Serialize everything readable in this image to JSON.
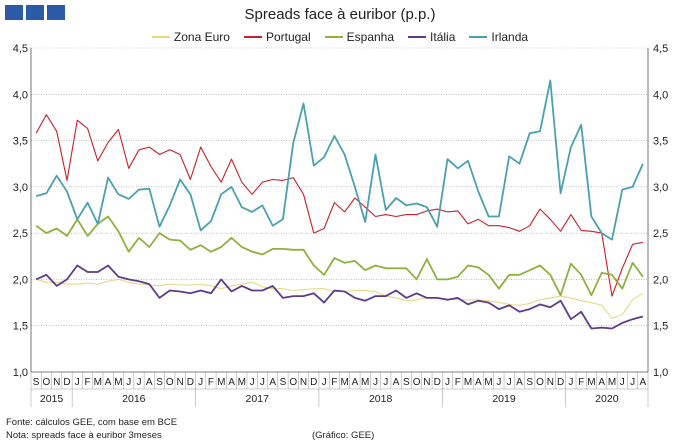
{
  "chart_data": {
    "type": "line",
    "title": "Spreads face à euribor (p.p.)",
    "y_ticks": [
      "1,0",
      "1,5",
      "2,0",
      "2,5",
      "3,0",
      "3,5",
      "4,0",
      "4,5"
    ],
    "ylim": [
      1.0,
      4.5
    ],
    "month_labels": [
      "S",
      "O",
      "N",
      "D",
      "J",
      "F",
      "M",
      "A",
      "M",
      "J",
      "J",
      "A",
      "S",
      "O",
      "N",
      "D",
      "J",
      "F",
      "M",
      "A",
      "M",
      "J",
      "J",
      "A",
      "S",
      "O",
      "N",
      "D",
      "J",
      "F",
      "M",
      "A",
      "M",
      "J",
      "J",
      "A",
      "S",
      "O",
      "N",
      "D",
      "J",
      "F",
      "M",
      "A",
      "M",
      "J",
      "J",
      "A",
      "S",
      "O",
      "N",
      "D",
      "J",
      "F",
      "M",
      "A",
      "M",
      "J",
      "J",
      "A"
    ],
    "year_labels": [
      {
        "label": "2015",
        "start": 0,
        "span": 4
      },
      {
        "label": "2016",
        "start": 4,
        "span": 12
      },
      {
        "label": "2017",
        "start": 16,
        "span": 12
      },
      {
        "label": "2018",
        "start": 28,
        "span": 12
      },
      {
        "label": "2019",
        "start": 40,
        "span": 12
      },
      {
        "label": "2020",
        "start": 52,
        "span": 8
      }
    ],
    "grid": true,
    "legend_position": "top",
    "series": [
      {
        "name": "Zona Euro",
        "color": "#e8d888",
        "values": [
          2.0,
          1.97,
          1.97,
          1.95,
          1.95,
          1.96,
          1.95,
          1.98,
          2.0,
          1.97,
          1.95,
          1.94,
          1.93,
          1.95,
          1.94,
          1.94,
          1.95,
          1.93,
          1.9,
          1.93,
          1.95,
          1.97,
          1.92,
          1.9,
          1.9,
          1.88,
          1.89,
          1.9,
          1.9,
          1.87,
          1.87,
          1.88,
          1.88,
          1.87,
          1.82,
          1.8,
          1.77,
          1.78,
          1.8,
          1.8,
          1.79,
          1.78,
          1.78,
          1.78,
          1.77,
          1.75,
          1.73,
          1.72,
          1.74,
          1.78,
          1.8,
          1.82,
          1.8,
          1.77,
          1.75,
          1.72,
          1.58,
          1.62,
          1.78,
          1.85
        ]
      },
      {
        "name": "Portugal",
        "color": "#c8202a",
        "values": [
          3.58,
          3.78,
          3.6,
          3.07,
          3.72,
          3.63,
          3.28,
          3.48,
          3.62,
          3.2,
          3.4,
          3.43,
          3.35,
          3.4,
          3.35,
          3.08,
          3.43,
          3.22,
          3.05,
          3.3,
          3.05,
          2.92,
          3.05,
          3.08,
          3.07,
          3.1,
          2.92,
          2.5,
          2.55,
          2.83,
          2.73,
          2.88,
          2.78,
          2.68,
          2.7,
          2.68,
          2.7,
          2.7,
          2.74,
          2.76,
          2.73,
          2.74,
          2.6,
          2.65,
          2.58,
          2.58,
          2.56,
          2.52,
          2.58,
          2.76,
          2.65,
          2.52,
          2.7,
          2.53,
          2.52,
          2.5,
          1.82,
          2.12,
          2.38,
          2.4
        ]
      },
      {
        "name": "Espanha",
        "color": "#8fb040",
        "values": [
          2.58,
          2.5,
          2.55,
          2.47,
          2.65,
          2.47,
          2.6,
          2.68,
          2.52,
          2.3,
          2.45,
          2.35,
          2.5,
          2.43,
          2.42,
          2.32,
          2.37,
          2.3,
          2.35,
          2.45,
          2.35,
          2.3,
          2.27,
          2.33,
          2.33,
          2.32,
          2.32,
          2.15,
          2.05,
          2.23,
          2.18,
          2.2,
          2.1,
          2.15,
          2.12,
          2.12,
          2.12,
          2.0,
          2.22,
          2.0,
          2.0,
          2.03,
          2.15,
          2.13,
          2.05,
          1.9,
          2.05,
          2.05,
          2.1,
          2.15,
          2.05,
          1.83,
          2.17,
          2.05,
          1.83,
          2.07,
          2.05,
          1.9,
          2.18,
          2.03
        ]
      },
      {
        "name": "Itália",
        "color": "#5e3a8c",
        "values": [
          2.0,
          2.05,
          1.93,
          2.0,
          2.15,
          2.08,
          2.08,
          2.15,
          2.03,
          2.0,
          1.98,
          1.95,
          1.8,
          1.88,
          1.87,
          1.85,
          1.88,
          1.85,
          2.0,
          1.87,
          1.93,
          1.88,
          1.88,
          1.93,
          1.8,
          1.82,
          1.82,
          1.85,
          1.75,
          1.88,
          1.87,
          1.8,
          1.77,
          1.82,
          1.82,
          1.88,
          1.8,
          1.85,
          1.8,
          1.8,
          1.78,
          1.8,
          1.73,
          1.77,
          1.75,
          1.68,
          1.72,
          1.65,
          1.68,
          1.73,
          1.7,
          1.77,
          1.57,
          1.65,
          1.47,
          1.48,
          1.47,
          1.53,
          1.57,
          1.6
        ]
      },
      {
        "name": "Irlanda",
        "color": "#4aa0b0",
        "values": [
          2.9,
          2.93,
          3.12,
          2.95,
          2.65,
          2.83,
          2.6,
          3.1,
          2.92,
          2.87,
          2.97,
          2.98,
          2.57,
          2.8,
          3.08,
          2.92,
          2.53,
          2.63,
          2.92,
          3.0,
          2.78,
          2.73,
          2.8,
          2.58,
          2.65,
          3.47,
          3.9,
          3.23,
          3.32,
          3.55,
          3.35,
          3.0,
          2.62,
          3.35,
          2.75,
          2.88,
          2.8,
          2.82,
          2.78,
          2.57,
          3.3,
          3.2,
          3.28,
          2.95,
          2.68,
          2.68,
          3.33,
          3.25,
          3.58,
          3.6,
          4.15,
          2.93,
          3.43,
          3.67,
          2.68,
          2.5,
          2.43,
          2.97,
          3.0,
          3.25
        ]
      }
    ]
  },
  "footer": {
    "source": "Fonte: cálculos GEE, com base em BCE",
    "note": "Nota: spreads face à euribor 3meses",
    "credit": "(Gráfico: GEE)"
  }
}
